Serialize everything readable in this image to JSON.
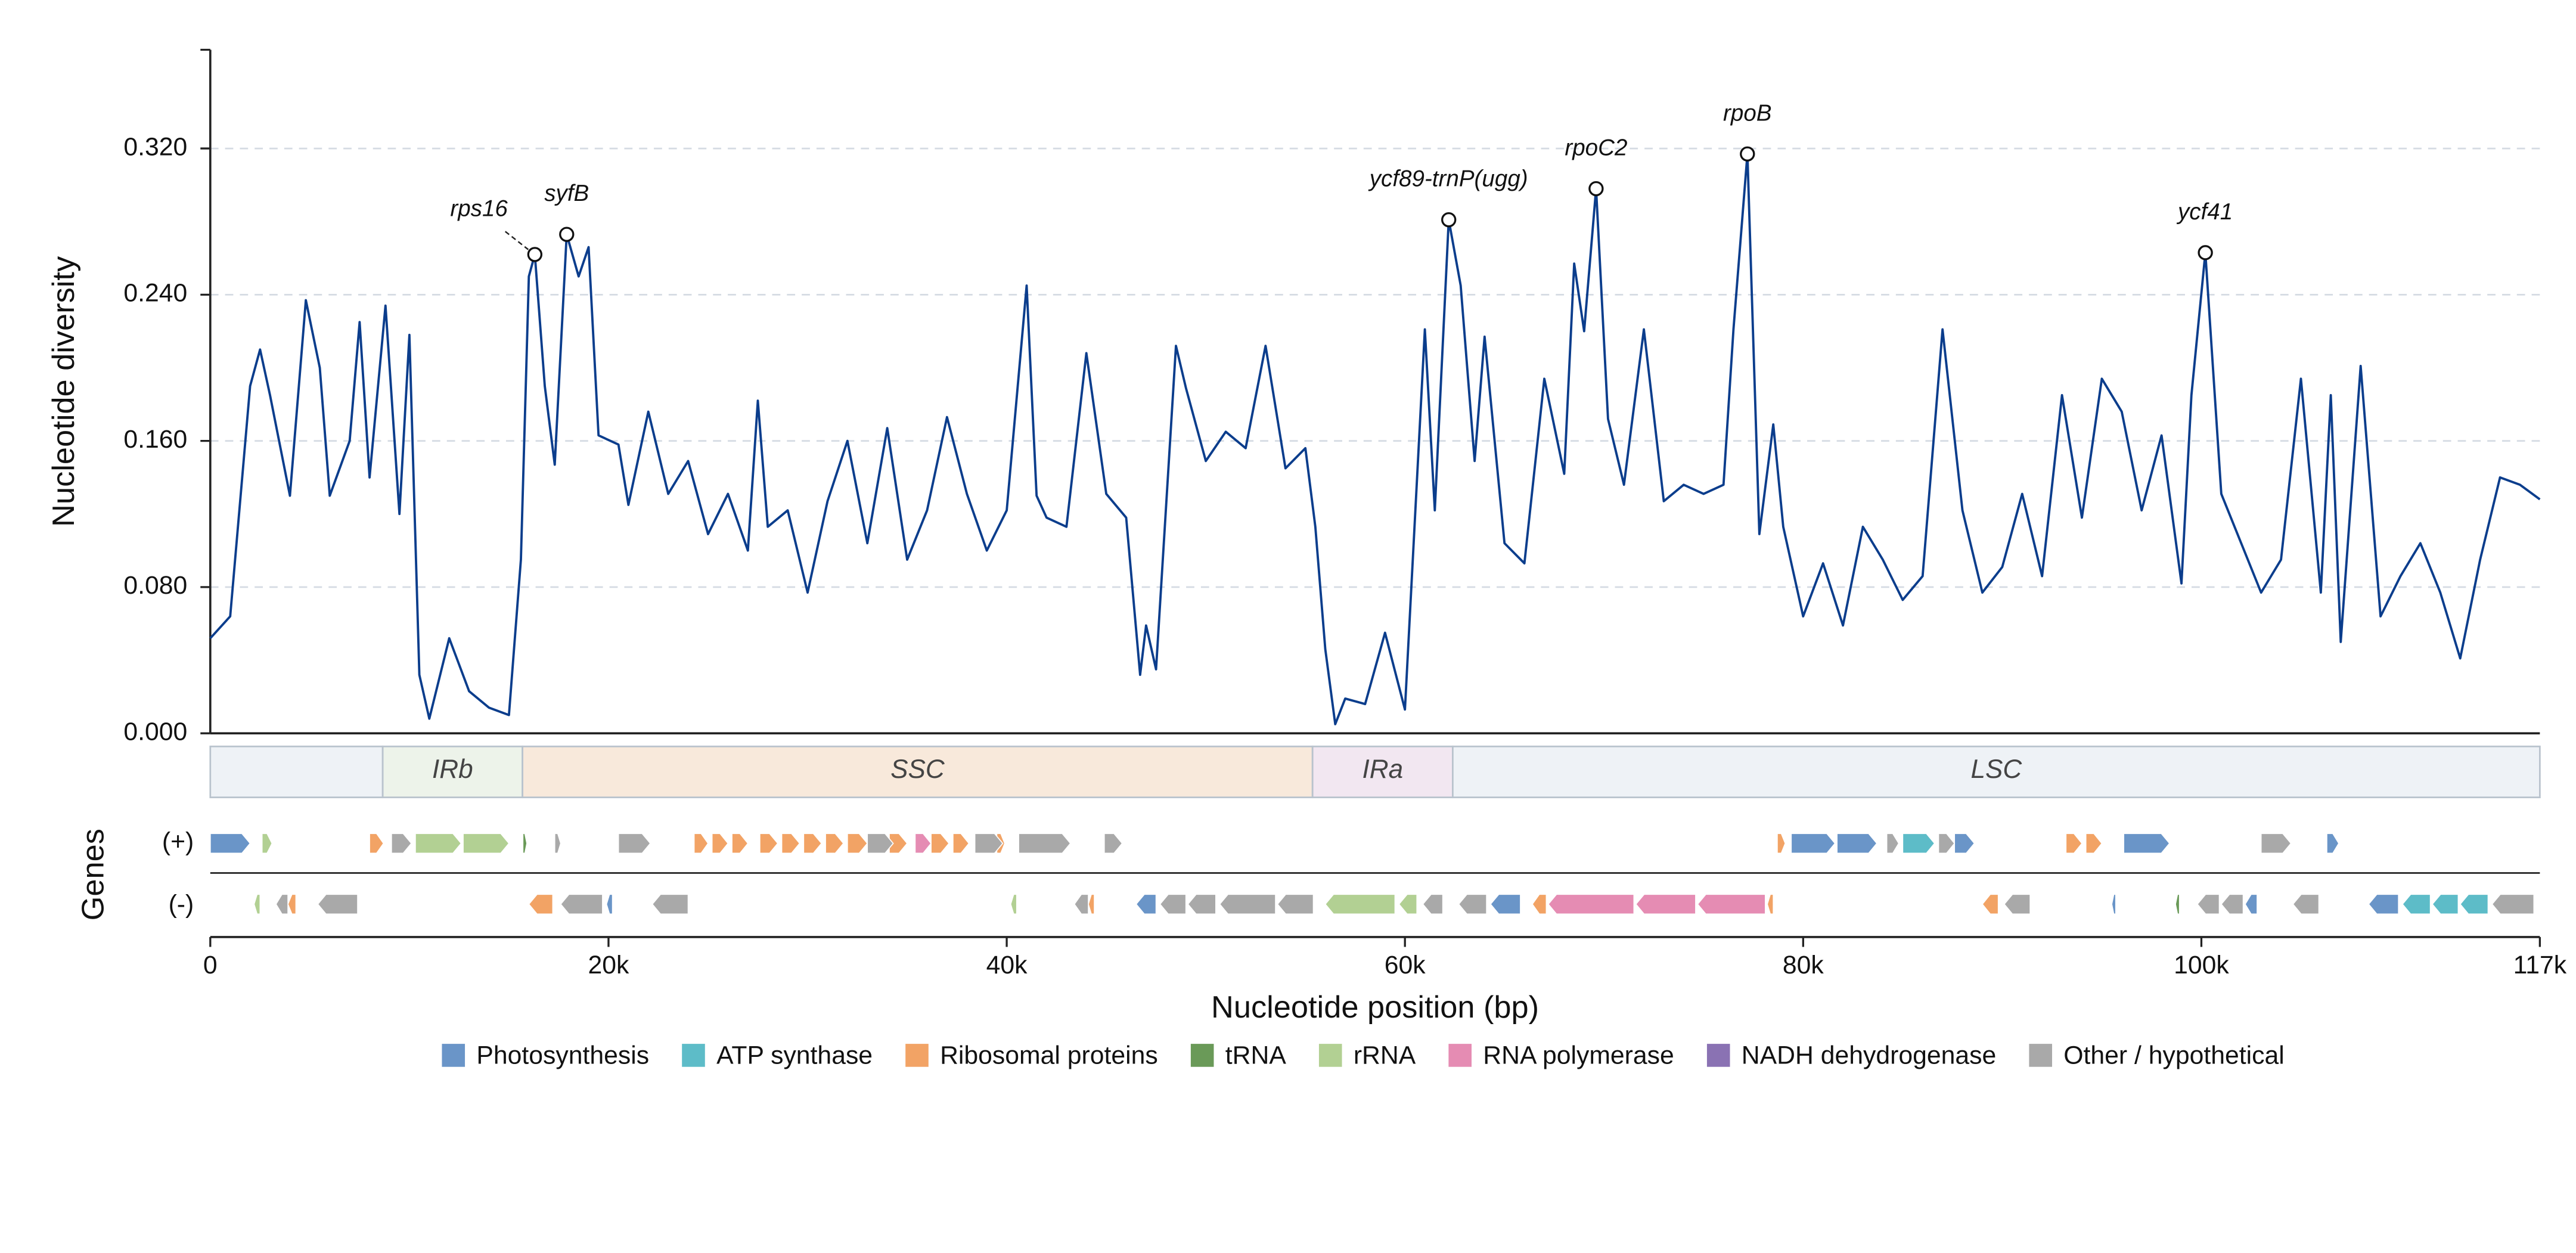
{
  "chart_data": {
    "type": "line",
    "y_label": "Nucleotide diversity",
    "x_label": "Nucleotide position (bp)",
    "gene_label": "Genes",
    "strand_labels": [
      "(+)",
      "(-)"
    ],
    "color": "#0b3d8c",
    "grid": true,
    "xlim": [
      0,
      117000
    ],
    "ylim": [
      0,
      0.374
    ],
    "xticks": [
      {
        "value": 0,
        "label": "0"
      },
      {
        "value": 20000,
        "label": "20k"
      },
      {
        "value": 40000,
        "label": "40k"
      },
      {
        "value": 60000,
        "label": "60k"
      },
      {
        "value": 80000,
        "label": "80k"
      },
      {
        "value": 100000,
        "label": "100k"
      },
      {
        "value": 117000,
        "label": "117k"
      }
    ],
    "yticks": [
      {
        "value": 0,
        "label": "0.000"
      },
      {
        "value": 0.08,
        "label": "0.080"
      },
      {
        "value": 0.16,
        "label": "0.160"
      },
      {
        "value": 0.24,
        "label": "0.240"
      },
      {
        "value": 0.32,
        "label": "0.320"
      }
    ],
    "x": [
      0,
      1000,
      2000,
      2500,
      3000,
      4000,
      4800,
      5500,
      6000,
      7000,
      7500,
      8000,
      8800,
      9500,
      10000,
      10500,
      11000,
      12000,
      13000,
      14000,
      15000,
      15600,
      16000,
      16300,
      16800,
      17300,
      17900,
      18500,
      19000,
      19500,
      20500,
      21000,
      22000,
      23000,
      24000,
      25000,
      26000,
      27000,
      27500,
      28000,
      29000,
      30000,
      31000,
      32000,
      33000,
      34000,
      35000,
      36000,
      37000,
      38000,
      39000,
      40000,
      41000,
      41500,
      42000,
      43000,
      44000,
      45000,
      46000,
      46700,
      47000,
      47500,
      48500,
      49000,
      50000,
      51000,
      52000,
      53000,
      54000,
      55000,
      55500,
      56000,
      56500,
      57000,
      58000,
      59000,
      60000,
      61000,
      61500,
      62200,
      62800,
      63500,
      64000,
      65000,
      66000,
      67000,
      68000,
      68500,
      69000,
      69600,
      70200,
      71000,
      72000,
      73000,
      74000,
      75000,
      76000,
      76500,
      77200,
      77800,
      78500,
      79000,
      80000,
      81000,
      82000,
      83000,
      84000,
      85000,
      86000,
      87000,
      88000,
      89000,
      90000,
      91000,
      92000,
      93000,
      94000,
      95000,
      96000,
      97000,
      98000,
      99000,
      99500,
      100200,
      101000,
      102000,
      103000,
      104000,
      105000,
      106000,
      106500,
      107000,
      108000,
      109000,
      110000,
      111000,
      112000,
      113000,
      114000,
      115000,
      116000,
      117000
    ],
    "values": [
      0.052,
      0.064,
      0.19,
      0.21,
      0.185,
      0.13,
      0.237,
      0.2,
      0.13,
      0.16,
      0.225,
      0.14,
      0.234,
      0.12,
      0.218,
      0.032,
      0.008,
      0.052,
      0.023,
      0.014,
      0.01,
      0.095,
      0.25,
      0.262,
      0.19,
      0.147,
      0.273,
      0.25,
      0.266,
      0.163,
      0.158,
      0.125,
      0.176,
      0.131,
      0.149,
      0.109,
      0.131,
      0.1,
      0.182,
      0.113,
      0.122,
      0.077,
      0.127,
      0.16,
      0.104,
      0.167,
      0.095,
      0.122,
      0.173,
      0.131,
      0.1,
      0.122,
      0.245,
      0.13,
      0.118,
      0.113,
      0.208,
      0.131,
      0.118,
      0.032,
      0.059,
      0.035,
      0.212,
      0.189,
      0.149,
      0.165,
      0.156,
      0.212,
      0.145,
      0.156,
      0.113,
      0.046,
      0.005,
      0.019,
      0.016,
      0.055,
      0.013,
      0.221,
      0.122,
      0.281,
      0.245,
      0.149,
      0.217,
      0.104,
      0.093,
      0.194,
      0.142,
      0.257,
      0.22,
      0.298,
      0.172,
      0.136,
      0.221,
      0.127,
      0.136,
      0.131,
      0.136,
      0.221,
      0.317,
      0.109,
      0.169,
      0.113,
      0.064,
      0.093,
      0.059,
      0.113,
      0.095,
      0.073,
      0.086,
      0.221,
      0.122,
      0.077,
      0.091,
      0.131,
      0.086,
      0.185,
      0.118,
      0.194,
      0.176,
      0.122,
      0.163,
      0.082,
      0.185,
      0.263,
      0.131,
      0.104,
      0.077,
      0.095,
      0.194,
      0.077,
      0.185,
      0.05,
      0.201,
      0.064,
      0.086,
      0.104,
      0.077,
      0.041,
      0.095,
      0.14,
      0.136,
      0.128
    ],
    "annotations": [
      {
        "label": "rps16",
        "x": 16300,
        "y": 0.262
      },
      {
        "label": "syfB",
        "x": 17900,
        "y": 0.273
      },
      {
        "label": "ycf89-trnP(ugg)",
        "x": 62200,
        "y": 0.281
      },
      {
        "label": "rpoC2",
        "x": 69600,
        "y": 0.298
      },
      {
        "label": "rpoB",
        "x": 77200,
        "y": 0.317
      },
      {
        "label": "ycf41",
        "x": 100200,
        "y": 0.263
      }
    ],
    "regions": [
      {
        "label": null,
        "start": 0,
        "end": 8660,
        "color": "#eef2f6"
      },
      {
        "label": "IRb",
        "start": 8660,
        "end": 15680,
        "color": "#edf3ea"
      },
      {
        "label": "SSC",
        "start": 15680,
        "end": 55360,
        "color": "#f8e9db"
      },
      {
        "label": "IRa",
        "start": 55360,
        "end": 62400,
        "color": "#f2e7f1"
      },
      {
        "label": "LSC",
        "start": 62400,
        "end": 117000,
        "color": "#eef2f6"
      }
    ],
    "gene_groups": [
      {
        "name": "Photosynthesis",
        "color": "#6a95c8",
        "plus": [
          [
            0,
            2000
          ],
          [
            79400,
            81600
          ],
          [
            81700,
            83700
          ],
          [
            87600,
            88600
          ],
          [
            96100,
            98400
          ],
          [
            106300,
            106900
          ]
        ],
        "minus": [
          [
            19900,
            20200
          ],
          [
            46500,
            47500
          ],
          [
            64300,
            65800
          ],
          [
            95500,
            95700
          ],
          [
            102200,
            102800
          ],
          [
            108400,
            109900
          ]
        ]
      },
      {
        "name": "ATP synthase",
        "color": "#5dbcc8",
        "plus": [
          [
            85000,
            86600
          ]
        ],
        "minus": [
          [
            110100,
            111500
          ],
          [
            111600,
            112900
          ],
          [
            113000,
            114400
          ]
        ]
      },
      {
        "name": "Ribosomal proteins",
        "color": "#f2a365",
        "plus": [
          [
            8000,
            8700
          ],
          [
            24300,
            25000
          ],
          [
            25200,
            26000
          ],
          [
            26200,
            27000
          ],
          [
            27600,
            28500
          ],
          [
            28700,
            29600
          ],
          [
            29800,
            30700
          ],
          [
            30900,
            31800
          ],
          [
            32000,
            33000
          ],
          [
            34100,
            35000
          ],
          [
            36200,
            37100
          ],
          [
            37300,
            38100
          ],
          [
            39500,
            39900
          ],
          [
            78700,
            79100
          ],
          [
            93200,
            94000
          ],
          [
            94200,
            95000
          ]
        ],
        "minus": [
          [
            3900,
            4300
          ],
          [
            16000,
            17200
          ],
          [
            44100,
            44400
          ],
          [
            66400,
            67100
          ],
          [
            78200,
            78500
          ],
          [
            89000,
            89800
          ]
        ]
      },
      {
        "name": "tRNA",
        "color": "#6a9a58",
        "plus": [
          [
            15700,
            15900
          ]
        ],
        "minus": [
          [
            98700,
            98900
          ]
        ]
      },
      {
        "name": "rRNA",
        "color": "#b2d093",
        "plus": [
          [
            2600,
            3100
          ],
          [
            10300,
            12600
          ],
          [
            12700,
            15000
          ]
        ],
        "minus": [
          [
            2200,
            2500
          ],
          [
            40200,
            40500
          ],
          [
            56000,
            59500
          ],
          [
            59700,
            60600
          ]
        ]
      },
      {
        "name": "RNA polymerase",
        "color": "#e58cb3",
        "plus": [
          [
            35400,
            36200
          ]
        ],
        "minus": [
          [
            67200,
            71500
          ],
          [
            71600,
            74600
          ],
          [
            74700,
            78100
          ]
        ]
      },
      {
        "name": "NADH dehydrogenase",
        "color": "#8a72b3",
        "plus": [],
        "minus": []
      },
      {
        "name": "Other / hypothetical",
        "color": "#a9a9a9",
        "plus": [
          [
            9100,
            10100
          ],
          [
            17300,
            17600
          ],
          [
            20500,
            22100
          ],
          [
            33000,
            34300
          ],
          [
            38400,
            39800
          ],
          [
            40600,
            43200
          ],
          [
            44900,
            45800
          ],
          [
            84200,
            84800
          ],
          [
            86800,
            87600
          ],
          [
            103000,
            104500
          ]
        ],
        "minus": [
          [
            3300,
            3900
          ],
          [
            5400,
            7400
          ],
          [
            17600,
            19700
          ],
          [
            22200,
            24000
          ],
          [
            43400,
            44100
          ],
          [
            47700,
            49000
          ],
          [
            49100,
            50500
          ],
          [
            50700,
            53500
          ],
          [
            53600,
            55400
          ],
          [
            60900,
            61900
          ],
          [
            62700,
            64100
          ],
          [
            90100,
            91400
          ],
          [
            99800,
            100900
          ],
          [
            101000,
            102100
          ],
          [
            104600,
            105900
          ],
          [
            114600,
            116700
          ]
        ]
      }
    ]
  }
}
